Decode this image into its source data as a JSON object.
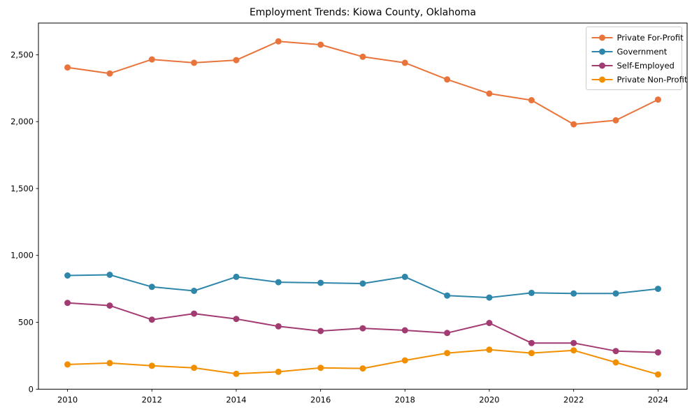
{
  "chart_data": {
    "type": "line",
    "title": "Employment Trends: Kiowa County, Oklahoma",
    "xlabel": "",
    "ylabel": "",
    "x": [
      2010,
      2011,
      2012,
      2013,
      2014,
      2015,
      2016,
      2017,
      2018,
      2019,
      2020,
      2021,
      2022,
      2023,
      2024
    ],
    "series": [
      {
        "name": "Private For-Profit",
        "color": "#E8743B",
        "values": [
          2405,
          2360,
          2465,
          2440,
          2460,
          2600,
          2575,
          2485,
          2440,
          2315,
          2210,
          2160,
          1980,
          2010,
          2165
        ]
      },
      {
        "name": "Government",
        "color": "#2E86AB",
        "values": [
          850,
          855,
          765,
          735,
          840,
          800,
          795,
          790,
          840,
          700,
          685,
          720,
          715,
          715,
          750
        ]
      },
      {
        "name": "Self-Employed",
        "color": "#A23B72",
        "values": [
          645,
          625,
          520,
          565,
          525,
          470,
          435,
          455,
          440,
          420,
          495,
          345,
          345,
          285,
          275
        ]
      },
      {
        "name": "Private Non-Profit",
        "color": "#F18F01",
        "values": [
          185,
          195,
          175,
          160,
          115,
          130,
          160,
          155,
          215,
          270,
          295,
          270,
          290,
          200,
          110
        ]
      }
    ],
    "xlim": [
      2009.31,
      2024.69
    ],
    "ylim": [
      0,
      2737
    ],
    "xticks": [
      2010,
      2012,
      2014,
      2016,
      2018,
      2020,
      2022,
      2024
    ],
    "xtick_labels": [
      "2010",
      "2012",
      "2014",
      "2016",
      "2018",
      "2020",
      "2022",
      "2024"
    ],
    "yticks": [
      0,
      500,
      1000,
      1500,
      2000,
      2500
    ],
    "ytick_labels": [
      "0",
      "500",
      "1,000",
      "1,500",
      "2,000",
      "2,500"
    ],
    "grid": false,
    "legend_position": "upper right"
  },
  "frame": {
    "background": "#ffffff",
    "axis_color": "#000000",
    "tick_label_color": "#000000",
    "legend_border_color": "#cccccc",
    "legend_background": "#ffffff"
  }
}
